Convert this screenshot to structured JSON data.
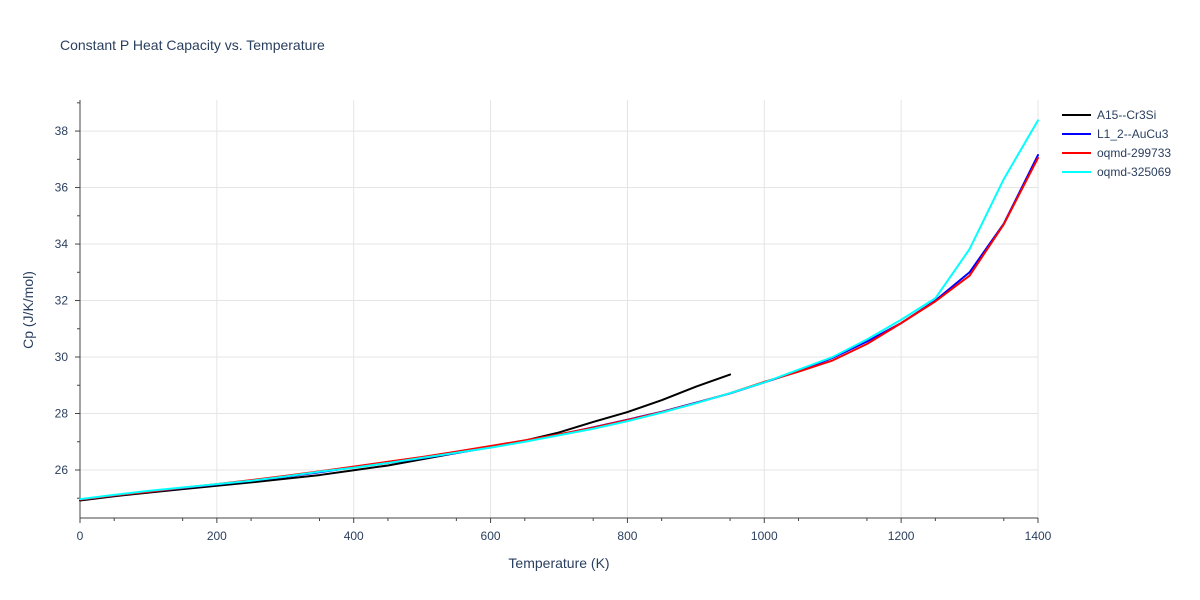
{
  "chart_data": {
    "type": "line",
    "title": "Constant P Heat Capacity vs. Temperature",
    "xlabel": "Temperature (K)",
    "ylabel": "Cp (J/K/mol)",
    "xlim": [
      0,
      1400
    ],
    "ylim": [
      24.3,
      39.1
    ],
    "x_ticks": [
      0,
      200,
      400,
      600,
      800,
      1000,
      1200,
      1400
    ],
    "x_tick_labels": [
      "0",
      "200",
      "400",
      "600",
      "800",
      "1000",
      "1200",
      "1400"
    ],
    "y_ticks": [
      26,
      28,
      30,
      32,
      34,
      36,
      38
    ],
    "y_tick_labels": [
      "26",
      "28",
      "30",
      "32",
      "34",
      "36",
      "38"
    ],
    "grid": true,
    "legend_position": "top-right",
    "series": [
      {
        "name": "A15--Cr3Si",
        "color": "#000000",
        "x": [
          0,
          50,
          100,
          150,
          200,
          250,
          300,
          350,
          400,
          450,
          500,
          550,
          600,
          650,
          700,
          750,
          800,
          850,
          900,
          950
        ],
        "y": [
          24.92,
          25.07,
          25.2,
          25.32,
          25.44,
          25.56,
          25.69,
          25.82,
          25.99,
          26.16,
          26.38,
          26.6,
          26.82,
          27.04,
          27.33,
          27.7,
          28.05,
          28.47,
          28.95,
          29.38
        ]
      },
      {
        "name": "L1_2--AuCu3",
        "color": "#0000ff",
        "x": [
          0,
          50,
          100,
          150,
          200,
          250,
          300,
          350,
          400,
          450,
          500,
          550,
          600,
          650,
          700,
          750,
          800,
          850,
          900,
          950,
          1000,
          1050,
          1100,
          1150,
          1200,
          1250,
          1300,
          1350,
          1400
        ],
        "y": [
          24.95,
          25.1,
          25.23,
          25.36,
          25.49,
          25.62,
          25.76,
          25.92,
          26.09,
          26.25,
          26.42,
          26.6,
          26.8,
          27.01,
          27.25,
          27.51,
          27.78,
          28.06,
          28.38,
          28.71,
          29.1,
          29.5,
          29.97,
          30.55,
          31.2,
          32.0,
          33.0,
          34.72,
          37.15
        ]
      },
      {
        "name": "oqmd-299733",
        "color": "#ff0000",
        "x": [
          0,
          50,
          100,
          150,
          200,
          250,
          300,
          350,
          400,
          450,
          500,
          550,
          600,
          650,
          700,
          750,
          800,
          850,
          900,
          950,
          1000,
          1050,
          1100,
          1150,
          1200,
          1250,
          1300,
          1350,
          1400
        ],
        "y": [
          24.95,
          25.1,
          25.23,
          25.37,
          25.5,
          25.64,
          25.79,
          25.95,
          26.12,
          26.29,
          26.46,
          26.65,
          26.85,
          27.05,
          27.26,
          27.5,
          27.77,
          28.05,
          28.37,
          28.72,
          29.12,
          29.48,
          29.88,
          30.46,
          31.2,
          31.97,
          32.88,
          34.7,
          37.05
        ]
      },
      {
        "name": "oqmd-325069",
        "color": "#00ffff",
        "x": [
          0,
          50,
          100,
          150,
          200,
          250,
          300,
          350,
          400,
          450,
          500,
          550,
          600,
          650,
          700,
          750,
          800,
          850,
          900,
          950,
          1000,
          1050,
          1100,
          1150,
          1200,
          1250,
          1300,
          1350,
          1400
        ],
        "y": [
          24.97,
          25.12,
          25.26,
          25.38,
          25.5,
          25.62,
          25.77,
          25.94,
          26.08,
          26.25,
          26.43,
          26.61,
          26.79,
          27.0,
          27.23,
          27.46,
          27.73,
          28.03,
          28.36,
          28.72,
          29.1,
          29.55,
          30.0,
          30.62,
          31.32,
          32.08,
          33.82,
          36.3,
          38.38
        ]
      }
    ]
  }
}
